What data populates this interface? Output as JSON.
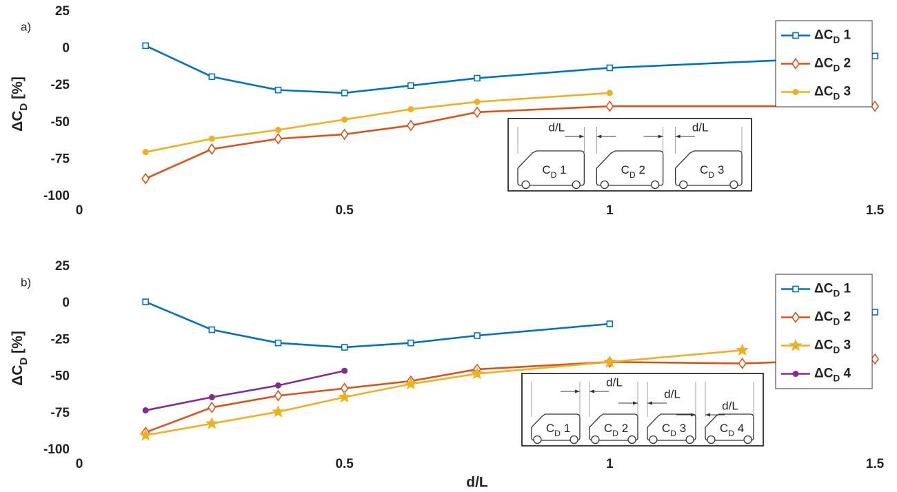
{
  "chart_data": [
    {
      "type": "line",
      "panel_label": "a)",
      "ylabel": "ΔCD [%]",
      "x": [
        0.125,
        0.25,
        0.375,
        0.5,
        0.625,
        0.75,
        1,
        1.5
      ],
      "xlim": [
        0,
        1.5
      ],
      "xticks": [
        0,
        0.5,
        1,
        1.5
      ],
      "ylim": [
        -100,
        25
      ],
      "yticks": [
        -100,
        -75,
        -50,
        -25,
        0,
        25
      ],
      "legend": "northeast",
      "series": [
        {
          "name": "ΔCD 1",
          "color": "#0072BD",
          "marker": "square",
          "values": [
            2,
            -19,
            -28,
            -30,
            -25,
            -20,
            -13,
            -5
          ]
        },
        {
          "name": "ΔCD 2",
          "color": "#D95319",
          "marker": "diamond",
          "values": [
            -88,
            -68,
            -61,
            -58,
            -52,
            -43,
            -39,
            -39
          ]
        },
        {
          "name": "ΔCD 3",
          "color": "#EDB120",
          "marker": "circle",
          "values": [
            -70,
            -61,
            -55,
            -48,
            -41,
            -36,
            -30,
            null
          ]
        }
      ],
      "inset": {
        "labels": [
          "d/L",
          "d/L"
        ],
        "vehicles": [
          "CD 1",
          "CD 2",
          "CD 3"
        ]
      }
    },
    {
      "type": "line",
      "panel_label": "b)",
      "ylabel": "ΔCD [%]",
      "xlabel": "d/L",
      "x": [
        0.125,
        0.25,
        0.375,
        0.5,
        0.625,
        0.75,
        1,
        1.25,
        1.5
      ],
      "xlim": [
        0,
        1.5
      ],
      "xticks": [
        0,
        0.5,
        1,
        1.5
      ],
      "ylim": [
        -100,
        25
      ],
      "yticks": [
        -100,
        -75,
        -50,
        -25,
        0,
        25
      ],
      "legend": "northeast",
      "series": [
        {
          "name": "ΔCD 1",
          "color": "#0072BD",
          "marker": "square",
          "values": [
            1,
            -18,
            -27,
            -30,
            -27,
            -22,
            -14,
            null,
            -6
          ]
        },
        {
          "name": "ΔCD 2",
          "color": "#D95319",
          "marker": "diamond",
          "values": [
            -88,
            -71,
            -63,
            -58,
            -53,
            -45,
            -40,
            -41,
            -38
          ]
        },
        {
          "name": "ΔCD 3",
          "color": "#EDB120",
          "marker": "star",
          "values": [
            -90,
            -82,
            -74,
            -64,
            -55,
            -48,
            -40,
            -32,
            null
          ]
        },
        {
          "name": "ΔCD 4",
          "color": "#7E2F8E",
          "marker": "circle",
          "values": [
            -73,
            -64,
            -56,
            -46,
            null,
            null,
            null,
            null,
            null
          ]
        }
      ],
      "inset": {
        "labels": [
          "d/L",
          "d/L",
          "d/L"
        ],
        "vehicles": [
          "CD 1",
          "CD 2",
          "CD 3",
          "CD 4"
        ]
      }
    }
  ]
}
